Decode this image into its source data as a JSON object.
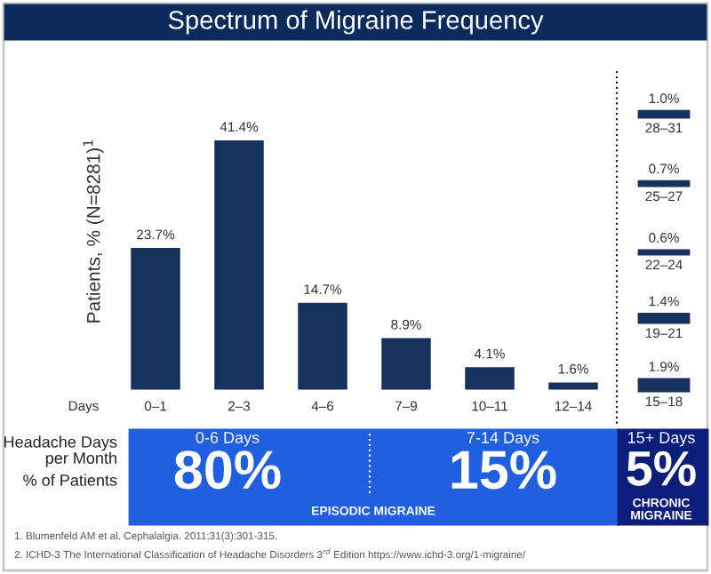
{
  "chart_data": [
    {
      "type": "bar",
      "title": "Spectrum of Migraine Frequency",
      "ylabel": "Patients, % (N=8281)$^{1}$",
      "xlabel": "Days",
      "categories": [
        "0–1",
        "2–3",
        "4–6",
        "7–9",
        "10–11",
        "12–14"
      ],
      "values": [
        23.7,
        41.4,
        14.7,
        8.9,
        4.1,
        1.6
      ],
      "value_labels": [
        "23.7%",
        "41.4%",
        "14.7%",
        "8.9%",
        "4.1%",
        "1.6%"
      ],
      "color": "#15325f",
      "tick_labels": "x",
      "grid": false,
      "legend": false,
      "annotations": [
        "Headache Days\nper Month",
        "% of Patients",
        "0-6 Days",
        "80%",
        "7-14 Days",
        "15%",
        "15+ Days",
        "5%",
        "EPISODIC MIGRAINE",
        "CHRONIC\nMIGRAINE",
        "1. Blumenfeld AM et al. Cephalalgia. 2011;31(3):301-315.",
        "2. ICHD-3 The International Classification of Headache Disorders 3$^{rd}$ Edition https://www.ichd-3.org/1-migraine/"
      ]
    },
    {
      "type": "other",
      "categories": [
        "15–18",
        "19–21",
        "22–24",
        "25–27",
        "28–31"
      ],
      "values": [
        1.9,
        1.4,
        0.6,
        0.7,
        1.0
      ],
      "value_labels": [
        "1.9%",
        "1.4%",
        "0.6%",
        "0.7%",
        "1.0%"
      ],
      "color": "#15325f"
    }
  ]
}
